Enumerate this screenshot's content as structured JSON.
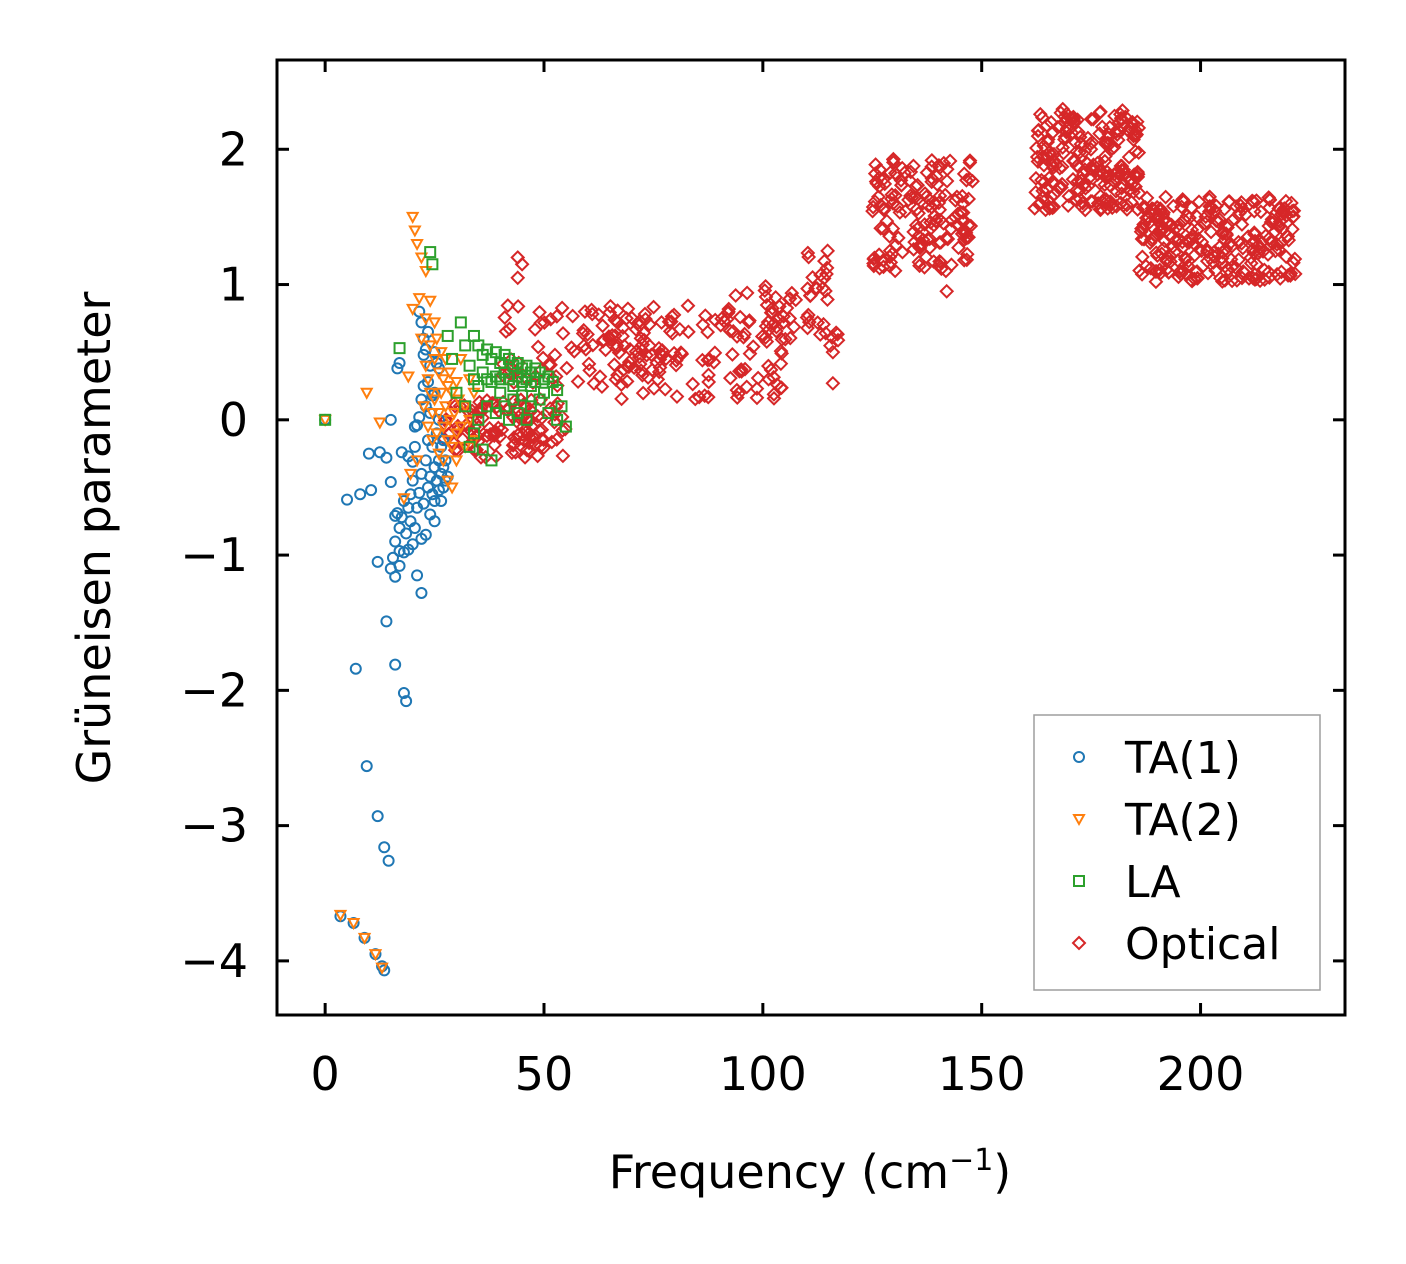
{
  "chart_data": {
    "type": "scatter",
    "xlabel": "Frequency (cm",
    "xlabel_sup": "−1",
    "xlabel_close": ")",
    "ylabel": "Grüneisen parameter",
    "xlim": [
      -11,
      233
    ],
    "ylim": [
      -4.4,
      2.66
    ],
    "xticks": [
      0,
      50,
      100,
      150,
      200
    ],
    "xtick_labels": [
      "0",
      "50",
      "100",
      "150",
      "200"
    ],
    "yticks": [
      -4,
      -3,
      -2,
      -1,
      0,
      1,
      2
    ],
    "ytick_labels": [
      "−4",
      "−3",
      "−2",
      "−1",
      "0",
      "1",
      "2"
    ],
    "legend_position": "lower-right",
    "series": [
      {
        "name": "TA(1)",
        "marker": "circle",
        "color": "#1f77b4",
        "points": [
          [
            0,
            0
          ],
          [
            3.5,
            -3.67
          ],
          [
            5,
            -0.59
          ],
          [
            6.5,
            -3.72
          ],
          [
            7,
            -1.84
          ],
          [
            8,
            -0.55
          ],
          [
            9,
            -3.83
          ],
          [
            9.5,
            -2.56
          ],
          [
            10,
            -0.25
          ],
          [
            10.5,
            -0.52
          ],
          [
            11.5,
            -3.95
          ],
          [
            12,
            -2.93
          ],
          [
            12,
            -1.05
          ],
          [
            12.5,
            -0.24
          ],
          [
            13,
            -4.04
          ],
          [
            13.5,
            -4.07
          ],
          [
            13.5,
            -3.16
          ],
          [
            14,
            -1.49
          ],
          [
            14,
            -0.28
          ],
          [
            14.5,
            -3.26
          ],
          [
            15,
            -1.1
          ],
          [
            15,
            -0.46
          ],
          [
            15,
            0
          ],
          [
            15.5,
            -1.02
          ],
          [
            16,
            -1.81
          ],
          [
            16,
            -1.16
          ],
          [
            16,
            -0.9
          ],
          [
            16,
            -0.71
          ],
          [
            16.5,
            -0.69
          ],
          [
            16.5,
            0.38
          ],
          [
            17,
            -1.08
          ],
          [
            17,
            -0.97
          ],
          [
            17,
            -0.8
          ],
          [
            17,
            0.42
          ],
          [
            17.5,
            -0.24
          ],
          [
            17.5,
            -0.72
          ],
          [
            18,
            -2.02
          ],
          [
            18,
            -0.98
          ],
          [
            18,
            -0.6
          ],
          [
            18.5,
            -2.08
          ],
          [
            18.5,
            -0.84
          ],
          [
            19,
            -0.27
          ],
          [
            19,
            -0.96
          ],
          [
            19,
            -0.65
          ],
          [
            19.5,
            -0.75
          ],
          [
            19.5,
            -0.55
          ],
          [
            20,
            -0.31
          ],
          [
            20,
            -0.92
          ],
          [
            20,
            -0.45
          ],
          [
            20.5,
            -0.8
          ],
          [
            20.5,
            -0.2
          ],
          [
            20.5,
            -0.05
          ],
          [
            21,
            -1.15
          ],
          [
            21,
            -0.65
          ],
          [
            21,
            -0.04
          ],
          [
            21.5,
            -0.54
          ],
          [
            21.5,
            0.02
          ],
          [
            21.5,
            0.8
          ],
          [
            22,
            -1.28
          ],
          [
            22,
            -0.88
          ],
          [
            22,
            -0.4
          ],
          [
            22,
            0.15
          ],
          [
            22,
            0.72
          ],
          [
            22.5,
            -0.62
          ],
          [
            22.5,
            0.25
          ],
          [
            22.5,
            0.6
          ],
          [
            22.5,
            0.48
          ],
          [
            23,
            -0.85
          ],
          [
            23,
            -0.3
          ],
          [
            23,
            0.1
          ],
          [
            23,
            0.52
          ],
          [
            23.5,
            -0.5
          ],
          [
            23.5,
            -0.15
          ],
          [
            23.5,
            0.28
          ],
          [
            23.5,
            0.65
          ],
          [
            24,
            -0.7
          ],
          [
            24,
            -0.42
          ],
          [
            24,
            0.05
          ],
          [
            24,
            0.4
          ],
          [
            24.5,
            -0.55
          ],
          [
            24.5,
            -0.2
          ],
          [
            24.5,
            0.18
          ],
          [
            25,
            -0.75
          ],
          [
            25,
            -0.6
          ],
          [
            25,
            -0.35
          ],
          [
            25,
            0.2
          ],
          [
            25,
            0.5
          ],
          [
            25.5,
            -0.45
          ],
          [
            25.5,
            -0.1
          ],
          [
            25.5,
            0.42
          ],
          [
            26,
            -0.52
          ],
          [
            26,
            -0.3
          ],
          [
            26,
            0.0
          ],
          [
            26,
            0.38
          ],
          [
            26.5,
            -0.6
          ],
          [
            26.5,
            -0.4
          ],
          [
            26.5,
            -0.2
          ],
          [
            27,
            -0.5
          ],
          [
            27,
            -0.35
          ],
          [
            27,
            -0.15
          ],
          [
            27.5,
            -0.45
          ],
          [
            27.5,
            -0.3
          ],
          [
            28,
            -0.42
          ]
        ]
      },
      {
        "name": "TA(2)",
        "marker": "triangle-down",
        "color": "#ff7f0e",
        "points": [
          [
            0,
            0
          ],
          [
            3.5,
            -3.66
          ],
          [
            6.5,
            -3.72
          ],
          [
            9,
            -3.83
          ],
          [
            9.5,
            0.2
          ],
          [
            11.5,
            -3.95
          ],
          [
            12.5,
            -0.02
          ],
          [
            13,
            -4.05
          ],
          [
            18,
            -0.58
          ],
          [
            19,
            0.32
          ],
          [
            19.5,
            -0.4
          ],
          [
            20,
            1.5
          ],
          [
            20,
            0.82
          ],
          [
            20.5,
            1.4
          ],
          [
            21,
            1.3
          ],
          [
            21,
            -0.3
          ],
          [
            21.5,
            0.9
          ],
          [
            22,
            1.2
          ],
          [
            22,
            0.6
          ],
          [
            22.5,
            0.1
          ],
          [
            23,
            1.1
          ],
          [
            23,
            0.75
          ],
          [
            23,
            0.4
          ],
          [
            23.5,
            0.3
          ],
          [
            23.5,
            -0.05
          ],
          [
            24,
            0.88
          ],
          [
            24,
            0.55
          ],
          [
            24,
            0.2
          ],
          [
            24.5,
            0.05
          ],
          [
            24.5,
            -0.15
          ],
          [
            25,
            0.72
          ],
          [
            25,
            0.45
          ],
          [
            25,
            0.15
          ],
          [
            25.5,
            0.6
          ],
          [
            25.5,
            -0.1
          ],
          [
            26,
            0.35
          ],
          [
            26,
            0.05
          ],
          [
            26,
            -0.25
          ],
          [
            26.5,
            0.5
          ],
          [
            26.5,
            0.2
          ],
          [
            27,
            0.3
          ],
          [
            27,
            -0.05
          ],
          [
            27,
            -0.3
          ],
          [
            27.5,
            0.45
          ],
          [
            27.5,
            0.1
          ],
          [
            28,
            0.25
          ],
          [
            28,
            -0.15
          ],
          [
            28,
            -0.45
          ],
          [
            28.5,
            0.35
          ],
          [
            28.5,
            0.0
          ],
          [
            29,
            0.2
          ],
          [
            29,
            -0.2
          ],
          [
            29,
            -0.5
          ],
          [
            29.5,
            0.05
          ],
          [
            30,
            0.28
          ],
          [
            30,
            -0.1
          ],
          [
            30,
            -0.3
          ],
          [
            30.5,
            0.15
          ],
          [
            31,
            -0.05
          ],
          [
            31,
            0.45
          ],
          [
            32,
            0.1
          ],
          [
            32,
            -0.2
          ],
          [
            33,
            0.3
          ],
          [
            33,
            0.0
          ],
          [
            34,
            0.2
          ],
          [
            34,
            -0.15
          ]
        ]
      },
      {
        "name": "LA",
        "marker": "square",
        "color": "#2ca02c",
        "points": [
          [
            0,
            0
          ],
          [
            17,
            0.53
          ],
          [
            24,
            1.24
          ],
          [
            24.5,
            1.15
          ],
          [
            28,
            0.62
          ],
          [
            29,
            0.45
          ],
          [
            30,
            0.2
          ],
          [
            31,
            0.72
          ],
          [
            32,
            0.55
          ],
          [
            32,
            0.1
          ],
          [
            33,
            0.4
          ],
          [
            33,
            -0.2
          ],
          [
            34,
            0.62
          ],
          [
            34,
            0.3
          ],
          [
            34,
            -0.1
          ],
          [
            35,
            0.55
          ],
          [
            35,
            0.25
          ],
          [
            35,
            0.0
          ],
          [
            36,
            0.48
          ],
          [
            36,
            0.35
          ],
          [
            36,
            -0.22
          ],
          [
            37,
            0.52
          ],
          [
            37,
            0.3
          ],
          [
            37,
            0.1
          ],
          [
            38,
            0.45
          ],
          [
            38,
            0.28
          ],
          [
            38,
            -0.3
          ],
          [
            39,
            0.5
          ],
          [
            39,
            0.32
          ],
          [
            39,
            0.05
          ],
          [
            40,
            0.42
          ],
          [
            40,
            0.3
          ],
          [
            40,
            0.2
          ],
          [
            41,
            0.48
          ],
          [
            41,
            0.35
          ],
          [
            41,
            0.1
          ],
          [
            42,
            0.45
          ],
          [
            42,
            0.3
          ],
          [
            42,
            0.0
          ],
          [
            43,
            0.4
          ],
          [
            43,
            0.25
          ],
          [
            43,
            0.15
          ],
          [
            44,
            0.42
          ],
          [
            44,
            0.32
          ],
          [
            44,
            0.05
          ],
          [
            45,
            0.38
          ],
          [
            45,
            0.28
          ],
          [
            45,
            0.18
          ],
          [
            46,
            0.4
          ],
          [
            46,
            0.3
          ],
          [
            46,
            0.0
          ],
          [
            47,
            0.35
          ],
          [
            47,
            0.25
          ],
          [
            47,
            0.1
          ],
          [
            48,
            0.38
          ],
          [
            48,
            0.28
          ],
          [
            49,
            0.35
          ],
          [
            49,
            0.15
          ],
          [
            50,
            0.3
          ],
          [
            50,
            0.2
          ],
          [
            51,
            0.32
          ],
          [
            51,
            0.05
          ],
          [
            52,
            0.28
          ],
          [
            53,
            0.22
          ],
          [
            53,
            0.0
          ],
          [
            54,
            0.1
          ],
          [
            55,
            -0.05
          ]
        ]
      },
      {
        "name": "Optical",
        "marker": "diamond",
        "color": "#d62728",
        "clusters": [
          {
            "x0": 27,
            "x1": 55,
            "y0": -0.28,
            "y1": 0.15,
            "n": 120
          },
          {
            "x0": 40,
            "x1": 80,
            "y0": 0.25,
            "y1": 0.85,
            "n": 90
          },
          {
            "x0": 60,
            "x1": 106,
            "y0": 0.15,
            "y1": 0.85,
            "n": 120
          },
          {
            "x0": 92,
            "x1": 108,
            "y0": 0.6,
            "y1": 1.0,
            "n": 25
          },
          {
            "x0": 110,
            "x1": 118,
            "y0": 0.5,
            "y1": 1.3,
            "n": 30
          },
          {
            "x0": 125,
            "x1": 148,
            "y0": 1.1,
            "y1": 1.95,
            "n": 160
          },
          {
            "x0": 162,
            "x1": 186,
            "y0": 1.55,
            "y1": 2.3,
            "n": 220
          },
          {
            "x0": 186,
            "x1": 222,
            "y0": 1.02,
            "y1": 1.65,
            "n": 260
          }
        ],
        "points": [
          [
            44,
            1.2
          ],
          [
            45,
            1.15
          ],
          [
            44,
            1.05
          ],
          [
            116,
            0.27
          ],
          [
            116,
            0.5
          ],
          [
            142,
            0.95
          ],
          [
            146,
            1.18
          ],
          [
            147,
            1.35
          ]
        ]
      }
    ]
  }
}
